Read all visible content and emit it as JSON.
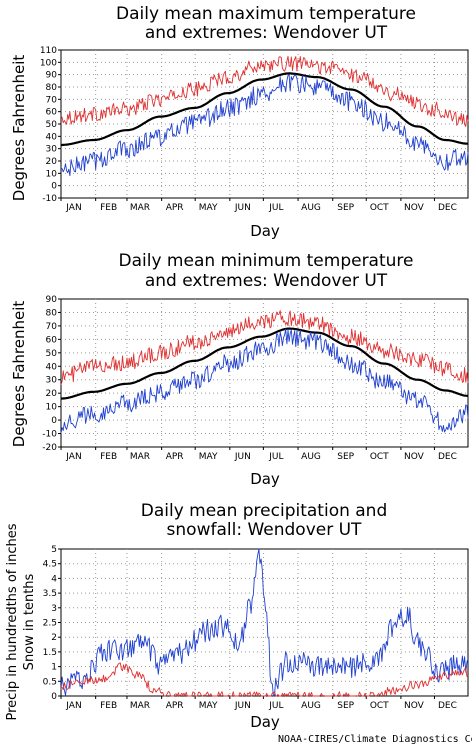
{
  "credit": "NOAA-CIRES/Climate Diagnostics Center",
  "chart_data": [
    {
      "type": "line",
      "title": [
        "Daily mean maximum temperature",
        "and extremes: Wendover UT"
      ],
      "xlabel": "Day",
      "ylabel": "Degrees Fahrenheit",
      "ylim": [
        -10,
        110
      ],
      "yticks": [
        "-10",
        "0",
        "10",
        "20",
        "30",
        "40",
        "50",
        "60",
        "70",
        "80",
        "90",
        "100",
        "110"
      ],
      "months": [
        "JAN",
        "FEB",
        "MAR",
        "APR",
        "MAY",
        "JUN",
        "JUL",
        "AUG",
        "SEP",
        "OCT",
        "NOV",
        "DEC"
      ],
      "grid": true,
      "series": [
        {
          "role": "record-high",
          "color": "#e03030",
          "anchors": [
            [
              1,
              55
            ],
            [
              30,
              58
            ],
            [
              60,
              62
            ],
            [
              90,
              70
            ],
            [
              120,
              78
            ],
            [
              150,
              88
            ],
            [
              180,
              98
            ],
            [
              210,
              99
            ],
            [
              240,
              96
            ],
            [
              270,
              88
            ],
            [
              300,
              74
            ],
            [
              335,
              62
            ],
            [
              365,
              52
            ]
          ],
          "noise": 6
        },
        {
          "role": "mean",
          "color": "#000000",
          "anchors": [
            [
              1,
              33
            ],
            [
              30,
              37
            ],
            [
              60,
              45
            ],
            [
              90,
              56
            ],
            [
              120,
              63
            ],
            [
              150,
              75
            ],
            [
              180,
              86
            ],
            [
              205,
              91
            ],
            [
              230,
              88
            ],
            [
              260,
              78
            ],
            [
              290,
              64
            ],
            [
              320,
              48
            ],
            [
              345,
              37
            ],
            [
              365,
              34
            ]
          ],
          "noise": 0
        },
        {
          "role": "record-low",
          "color": "#2040d0",
          "anchors": [
            [
              1,
              12
            ],
            [
              30,
              20
            ],
            [
              60,
              30
            ],
            [
              90,
              40
            ],
            [
              120,
              50
            ],
            [
              150,
              62
            ],
            [
              180,
              74
            ],
            [
              205,
              84
            ],
            [
              230,
              80
            ],
            [
              260,
              68
            ],
            [
              290,
              52
            ],
            [
              320,
              36
            ],
            [
              345,
              20
            ],
            [
              365,
              24
            ]
          ],
          "noise": 8
        }
      ]
    },
    {
      "type": "line",
      "title": [
        "Daily mean minimum temperature",
        "and extremes: Wendover UT"
      ],
      "xlabel": "Day",
      "ylabel": "Degrees Fahrenheit",
      "ylim": [
        -20,
        90
      ],
      "yticks": [
        "-20",
        "-10",
        "0",
        "10",
        "20",
        "30",
        "40",
        "50",
        "60",
        "70",
        "80",
        "90"
      ],
      "months": [
        "JAN",
        "FEB",
        "MAR",
        "APR",
        "MAY",
        "JUN",
        "JUL",
        "AUG",
        "SEP",
        "OCT",
        "NOV",
        "DEC"
      ],
      "grid": true,
      "series": [
        {
          "role": "record-high",
          "color": "#e03030",
          "anchors": [
            [
              1,
              32
            ],
            [
              30,
              40
            ],
            [
              60,
              43
            ],
            [
              90,
              50
            ],
            [
              120,
              58
            ],
            [
              150,
              65
            ],
            [
              180,
              74
            ],
            [
              205,
              76
            ],
            [
              230,
              72
            ],
            [
              260,
              62
            ],
            [
              290,
              52
            ],
            [
              320,
              45
            ],
            [
              345,
              38
            ],
            [
              365,
              33
            ]
          ],
          "noise": 6
        },
        {
          "role": "mean",
          "color": "#000000",
          "anchors": [
            [
              1,
              16
            ],
            [
              30,
              21
            ],
            [
              60,
              27
            ],
            [
              90,
              35
            ],
            [
              120,
              44
            ],
            [
              150,
              54
            ],
            [
              180,
              62
            ],
            [
              205,
              68
            ],
            [
              230,
              65
            ],
            [
              260,
              55
            ],
            [
              290,
              42
            ],
            [
              320,
              30
            ],
            [
              345,
              22
            ],
            [
              365,
              18
            ]
          ],
          "noise": 0
        },
        {
          "role": "record-low",
          "color": "#2040d0",
          "anchors": [
            [
              1,
              -3
            ],
            [
              30,
              5
            ],
            [
              60,
              12
            ],
            [
              90,
              20
            ],
            [
              120,
              30
            ],
            [
              150,
              42
            ],
            [
              180,
              52
            ],
            [
              205,
              62
            ],
            [
              230,
              58
            ],
            [
              260,
              42
            ],
            [
              290,
              28
            ],
            [
              320,
              15
            ],
            [
              345,
              -4
            ],
            [
              365,
              5
            ]
          ],
          "noise": 7
        }
      ]
    },
    {
      "type": "line",
      "title": [
        "Daily mean precipitation and",
        "snowfall: Wendover UT"
      ],
      "xlabel": "Day",
      "ylabel": [
        "Precip in hundredths of inches",
        "Snow in tenths"
      ],
      "ylim": [
        0,
        5
      ],
      "yticks": [
        "0",
        "0.5",
        "1",
        "1.5",
        "2",
        "2.5",
        "3",
        "3.5",
        "4",
        "4.5",
        "5"
      ],
      "months": [
        "JAN",
        "FEB",
        "MAR",
        "APR",
        "MAY",
        "JUN",
        "JUL",
        "AUG",
        "SEP",
        "OCT",
        "NOV",
        "DEC"
      ],
      "grid": true,
      "series": [
        {
          "role": "precipitation",
          "color": "#2040d0",
          "anchors": [
            [
              1,
              0.3
            ],
            [
              20,
              0.6
            ],
            [
              40,
              1.5
            ],
            [
              60,
              1.6
            ],
            [
              75,
              1.8
            ],
            [
              90,
              1.0
            ],
            [
              110,
              1.5
            ],
            [
              130,
              2.2
            ],
            [
              145,
              2.4
            ],
            [
              160,
              1.8
            ],
            [
              170,
              3.0
            ],
            [
              178,
              4.9
            ],
            [
              185,
              2.5
            ],
            [
              190,
              0.3
            ],
            [
              205,
              1.2
            ],
            [
              230,
              1.0
            ],
            [
              260,
              1.0
            ],
            [
              285,
              1.2
            ],
            [
              300,
              2.5
            ],
            [
              310,
              2.8
            ],
            [
              320,
              1.8
            ],
            [
              340,
              0.8
            ],
            [
              365,
              1.2
            ]
          ],
          "noise": 0.4
        },
        {
          "role": "snowfall",
          "color": "#e03030",
          "anchors": [
            [
              1,
              0.3
            ],
            [
              20,
              0.5
            ],
            [
              40,
              0.6
            ],
            [
              55,
              1.0
            ],
            [
              70,
              0.7
            ],
            [
              85,
              0.2
            ],
            [
              100,
              0.0
            ],
            [
              180,
              0.0
            ],
            [
              280,
              0.0
            ],
            [
              300,
              0.2
            ],
            [
              320,
              0.4
            ],
            [
              345,
              0.7
            ],
            [
              365,
              0.8
            ]
          ],
          "noise": 0.15
        }
      ]
    }
  ]
}
